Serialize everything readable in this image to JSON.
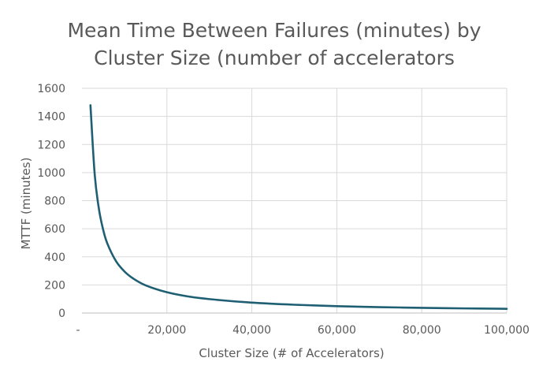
{
  "chart_data": {
    "type": "line",
    "title_lines": [
      "Mean Time Between Failures (minutes) by",
      "Cluster Size (number of accelerators"
    ],
    "xlabel": "Cluster Size (# of Accelerators)",
    "ylabel": "MTTF (minutes)",
    "xlim": [
      0,
      100000
    ],
    "ylim": [
      0,
      1600
    ],
    "x_ticks": [
      0,
      20000,
      40000,
      60000,
      80000,
      100000
    ],
    "x_tick_labels": [
      "-",
      "20,000",
      "40,000",
      "60,000",
      "80,000",
      "100,000"
    ],
    "y_ticks": [
      0,
      200,
      400,
      600,
      800,
      1000,
      1200,
      1400,
      1600
    ],
    "y_tick_labels": [
      "0",
      "200",
      "400",
      "600",
      "800",
      "1000",
      "1200",
      "1400",
      "1600"
    ],
    "grid": true,
    "legend": "none",
    "series": [
      {
        "color": "#1f5f73",
        "x": [
          2000,
          3000,
          4000,
          5000,
          6000,
          8000,
          10000,
          12000,
          15000,
          20000,
          25000,
          30000,
          40000,
          50000,
          60000,
          70000,
          80000,
          90000,
          100000
        ],
        "y": [
          1480,
          987,
          740,
          592,
          493,
          370,
          296,
          247,
          197,
          148,
          118,
          99,
          74,
          59,
          49,
          42,
          37,
          33,
          30
        ]
      }
    ]
  }
}
